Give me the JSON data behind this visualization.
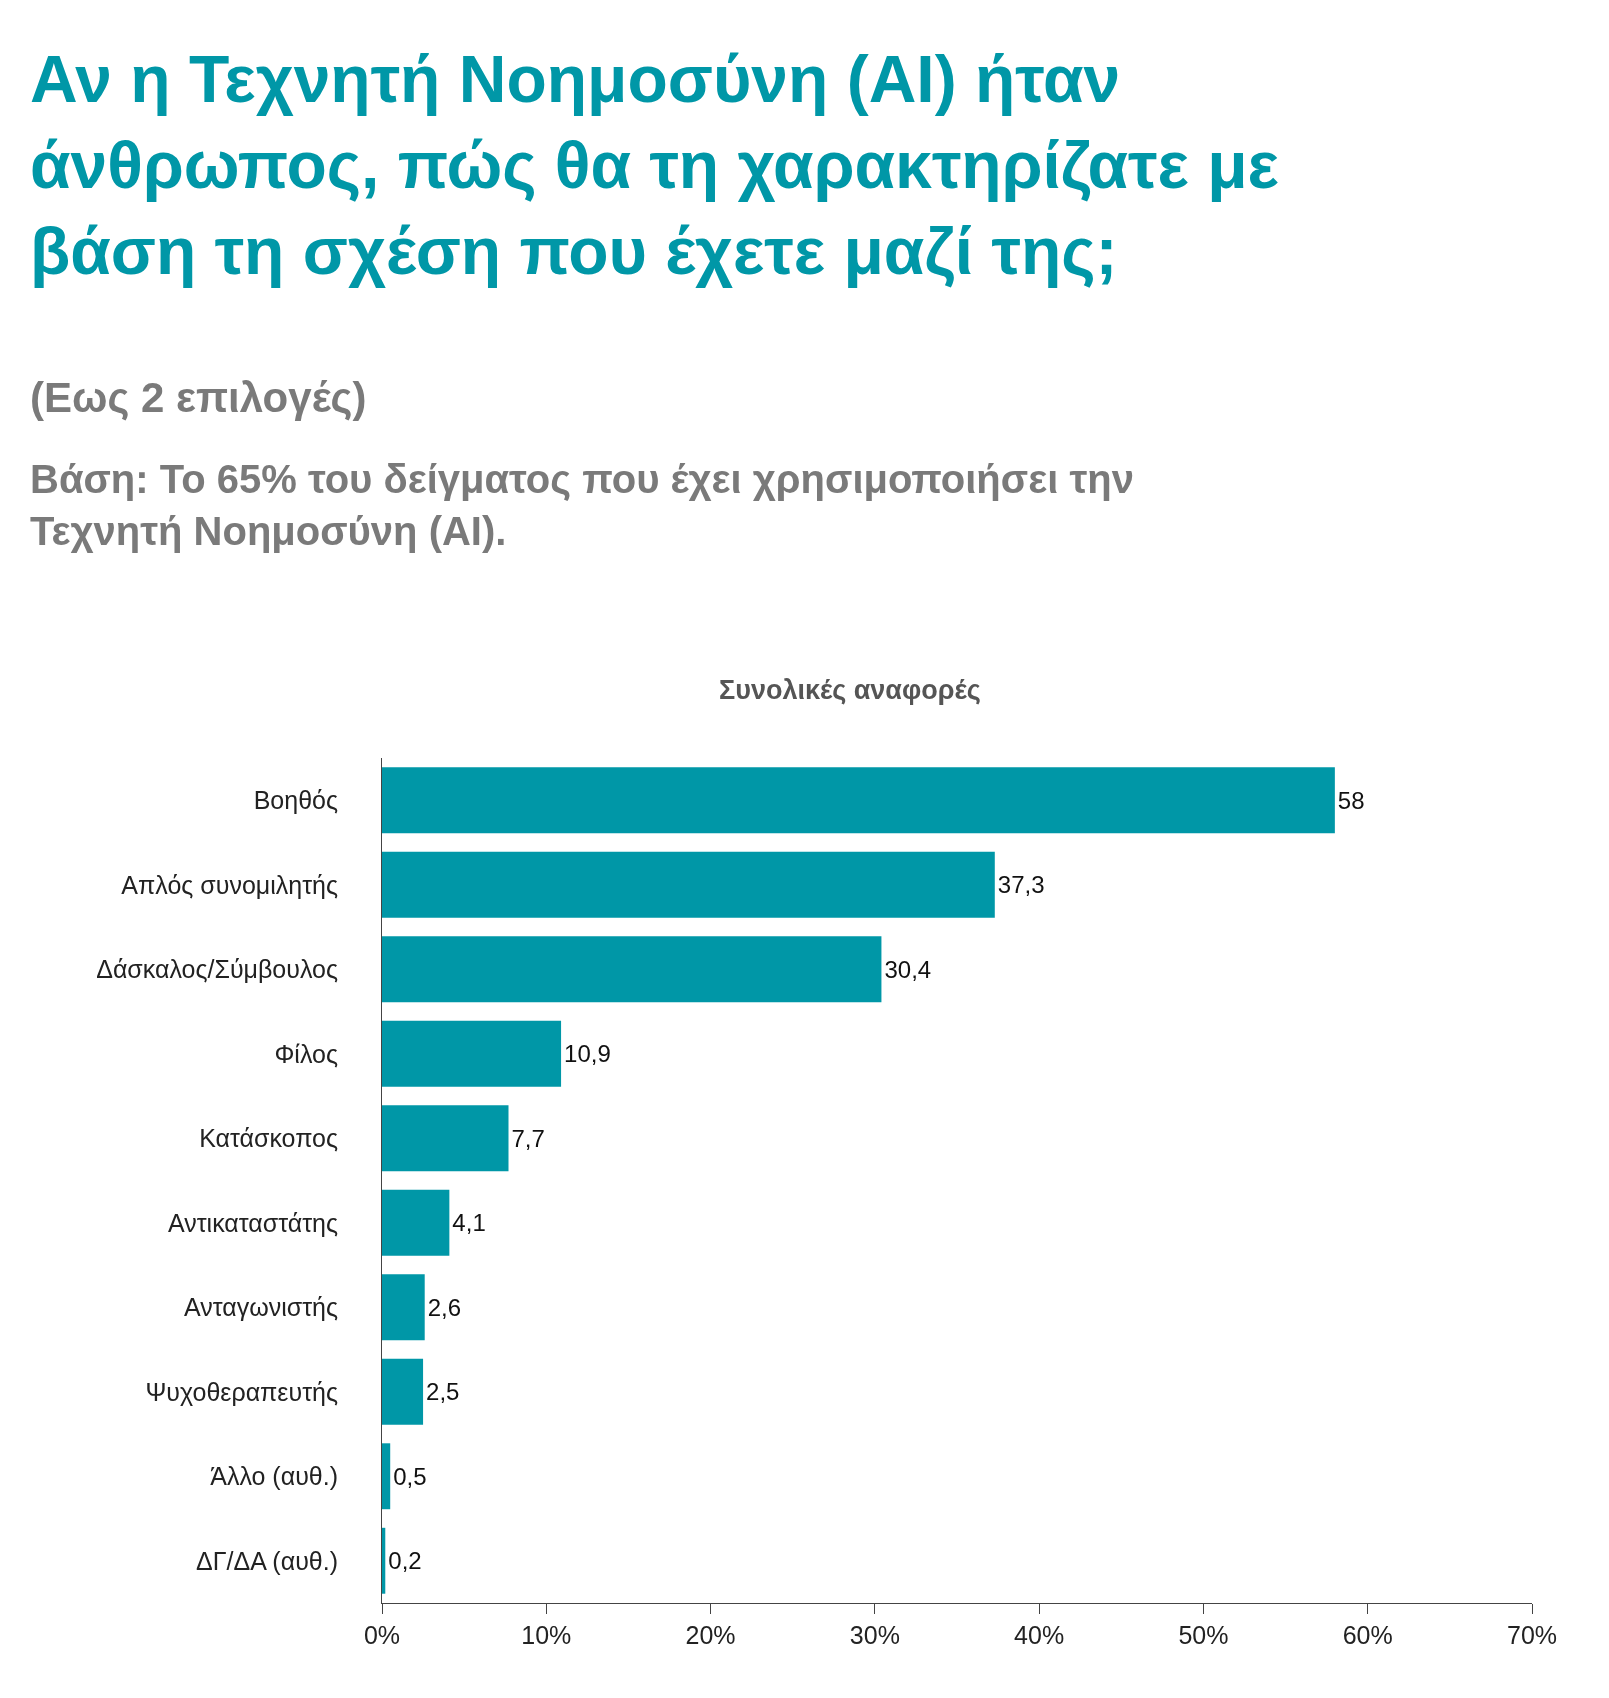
{
  "chart_data": {
    "type": "bar",
    "orientation": "horizontal",
    "title": "Αν η Τεχνητή Νοημοσύνη (AI) ήταν\nάνθρωπος, πώς θα τη χαρακτηρίζατε με\nβάση τη σχέση που έχετε μαζί της;",
    "subtitle": "(Εως 2 επιλογές)",
    "annotations": [
      "Βάση: Το 65% του δείγματος που έχει χρησιμοποιήσει την\nΤεχνητή Νοημοσύνη (AI).",
      "Συνολικές αναφορές"
    ],
    "categories": [
      "Βοηθός",
      "Απλός συνομιλητής",
      "Δάσκαλος/Σύμβουλος",
      "Φίλος",
      "Κατάσκοπος",
      "Αντικαταστάτης",
      "Ανταγωνιστής",
      "Ψυχοθεραπευτής",
      "Άλλο (αυθ.)",
      "ΔΓ/ΔΑ (αυθ.)"
    ],
    "values": [
      58,
      37.3,
      30.4,
      10.9,
      7.7,
      4.1,
      2.6,
      2.5,
      0.5,
      0.2
    ],
    "value_labels": [
      "58",
      "37,3",
      "30,4",
      "10,9",
      "7,7",
      "4,1",
      "2,6",
      "2,5",
      "0,5",
      "0,2"
    ],
    "color": "#0097a7",
    "xlim": [
      0,
      70
    ],
    "xticks": [
      {
        "value": 0,
        "label": "0%"
      },
      {
        "value": 10,
        "label": "10%"
      },
      {
        "value": 20,
        "label": "20%"
      },
      {
        "value": 30,
        "label": "30%"
      },
      {
        "value": 40,
        "label": "40%"
      },
      {
        "value": 50,
        "label": "50%"
      },
      {
        "value": 60,
        "label": "60%"
      },
      {
        "value": 70,
        "label": "70%"
      }
    ],
    "legend": false
  }
}
